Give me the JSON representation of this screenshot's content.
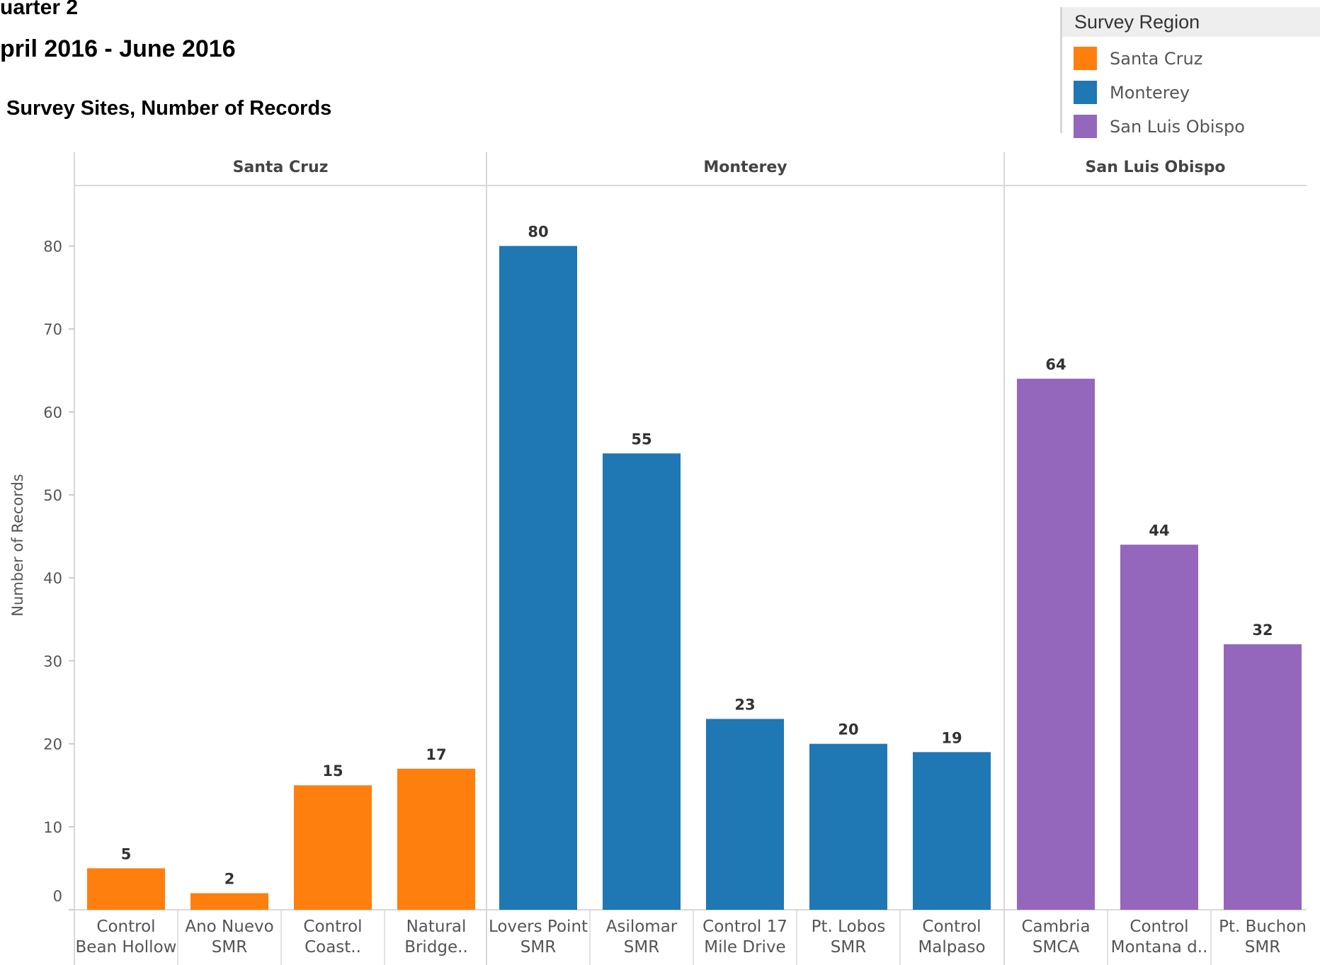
{
  "header": {
    "quarter": "uarter 2",
    "date_range": "pril 2016 - June 2016",
    "subtitle": "Survey Sites, Number of Records"
  },
  "legend": {
    "title": "Survey Region",
    "items": [
      {
        "label": "Santa Cruz",
        "color": "#ff7f0e"
      },
      {
        "label": "Monterey",
        "color": "#1f77b4"
      },
      {
        "label": "San Luis Obispo",
        "color": "#9467bd"
      }
    ]
  },
  "chart_data": {
    "type": "bar",
    "ylabel": "Number of Records",
    "ylim": [
      0,
      90
    ],
    "yticks": [
      0,
      10,
      20,
      30,
      40,
      50,
      60,
      70,
      80
    ],
    "grid": false,
    "legend_position": "top-right",
    "panels": [
      {
        "name": "Santa Cruz",
        "color": "#ff7f0e",
        "categories": [
          [
            "Control",
            "Bean Hollow"
          ],
          [
            "Ano Nuevo",
            "SMR"
          ],
          [
            "Control",
            "Coast.."
          ],
          [
            "Natural",
            "Bridge.."
          ]
        ],
        "values": [
          5,
          2,
          15,
          17
        ]
      },
      {
        "name": "Monterey",
        "color": "#1f77b4",
        "categories": [
          [
            "Lovers Point",
            "SMR"
          ],
          [
            "Asilomar",
            "SMR"
          ],
          [
            "Control 17",
            "Mile Drive"
          ],
          [
            "Pt. Lobos",
            "SMR"
          ],
          [
            "Control",
            "Malpaso"
          ]
        ],
        "values": [
          80,
          55,
          23,
          20,
          19
        ]
      },
      {
        "name": "San Luis Obispo",
        "color": "#9467bd",
        "categories": [
          [
            "Cambria",
            "SMCA"
          ],
          [
            "Control",
            "Montana d.."
          ],
          [
            "Pt. Buchon",
            "SMR"
          ]
        ],
        "values": [
          64,
          44,
          32
        ]
      }
    ]
  }
}
